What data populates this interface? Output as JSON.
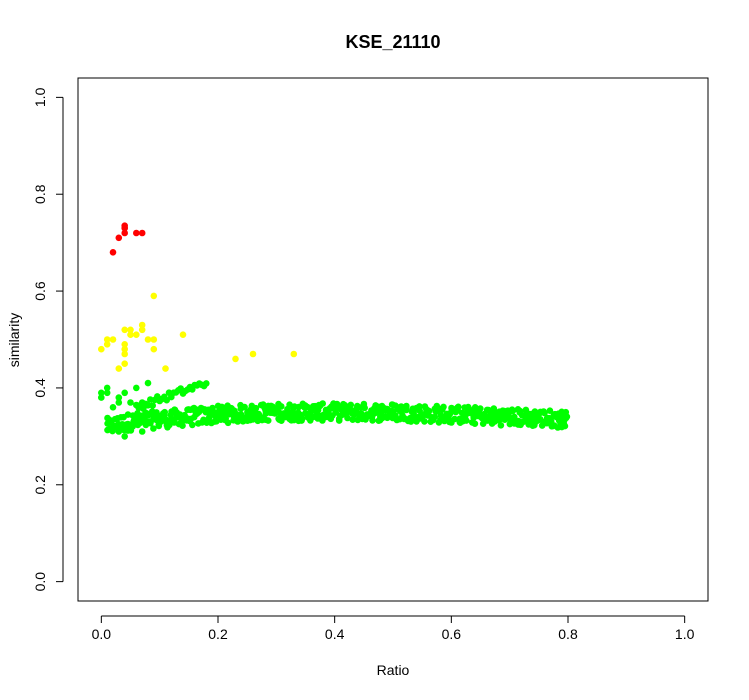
{
  "chart_data": {
    "type": "scatter",
    "title": "KSE_21110",
    "xlabel": "Ratio",
    "ylabel": "similarity",
    "xlim": [
      -0.04,
      1.04
    ],
    "ylim": [
      -0.04,
      1.04
    ],
    "x_ticks": [
      "0.0",
      "0.2",
      "0.4",
      "0.6",
      "0.8",
      "1.0"
    ],
    "y_ticks": [
      "0.0",
      "0.2",
      "0.4",
      "0.6",
      "0.8",
      "1.0"
    ],
    "grid": false,
    "legend": "none",
    "colors": {
      "red": "#ff0000",
      "yellow": "#ffff00",
      "green": "#00ff00"
    },
    "series": [
      {
        "color": "#ff0000",
        "points": [
          [
            0.02,
            0.68
          ],
          [
            0.03,
            0.71
          ],
          [
            0.04,
            0.72
          ],
          [
            0.04,
            0.73
          ],
          [
            0.04,
            0.735
          ],
          [
            0.06,
            0.72
          ],
          [
            0.07,
            0.72
          ]
        ]
      },
      {
        "color": "#ffff00",
        "points": [
          [
            0.0,
            0.48
          ],
          [
            0.01,
            0.49
          ],
          [
            0.01,
            0.5
          ],
          [
            0.02,
            0.5
          ],
          [
            0.03,
            0.44
          ],
          [
            0.04,
            0.45
          ],
          [
            0.04,
            0.47
          ],
          [
            0.04,
            0.48
          ],
          [
            0.04,
            0.49
          ],
          [
            0.04,
            0.52
          ],
          [
            0.05,
            0.51
          ],
          [
            0.05,
            0.52
          ],
          [
            0.06,
            0.51
          ],
          [
            0.07,
            0.52
          ],
          [
            0.07,
            0.53
          ],
          [
            0.08,
            0.5
          ],
          [
            0.09,
            0.48
          ],
          [
            0.09,
            0.5
          ],
          [
            0.09,
            0.59
          ],
          [
            0.11,
            0.44
          ],
          [
            0.14,
            0.51
          ],
          [
            0.23,
            0.46
          ],
          [
            0.26,
            0.47
          ],
          [
            0.33,
            0.47
          ]
        ]
      },
      {
        "color": "#00ff00",
        "band": {
          "x_start": 0.01,
          "x_end": 0.8,
          "step": 0.004,
          "profile": [
            [
              0.01,
              0.32
            ],
            [
              0.05,
              0.33
            ],
            [
              0.1,
              0.335
            ],
            [
              0.15,
              0.34
            ],
            [
              0.2,
              0.345
            ],
            [
              0.3,
              0.35
            ],
            [
              0.4,
              0.35
            ],
            [
              0.5,
              0.35
            ],
            [
              0.6,
              0.345
            ],
            [
              0.7,
              0.34
            ],
            [
              0.8,
              0.335
            ]
          ],
          "spread": 0.018
        },
        "upper_arm": {
          "x_start": 0.06,
          "x_end": 0.18,
          "step": 0.004,
          "y_start": 0.36,
          "y_end": 0.41,
          "spread": 0.008
        },
        "points": [
          [
            0.0,
            0.38
          ],
          [
            0.0,
            0.39
          ],
          [
            0.01,
            0.39
          ],
          [
            0.01,
            0.4
          ],
          [
            0.02,
            0.36
          ],
          [
            0.03,
            0.37
          ],
          [
            0.03,
            0.38
          ],
          [
            0.04,
            0.39
          ],
          [
            0.05,
            0.37
          ],
          [
            0.06,
            0.4
          ],
          [
            0.07,
            0.37
          ],
          [
            0.08,
            0.41
          ],
          [
            0.04,
            0.3
          ],
          [
            0.03,
            0.31
          ],
          [
            0.07,
            0.31
          ]
        ]
      }
    ]
  }
}
